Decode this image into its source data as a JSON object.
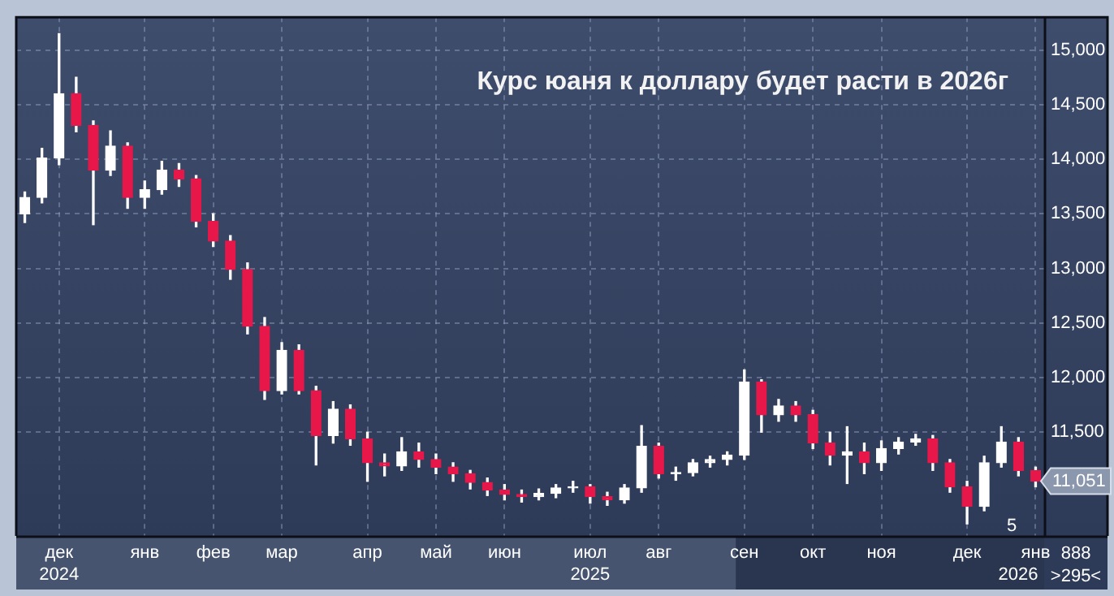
{
  "chart_data": {
    "type": "candlestick",
    "title": "Курс юаня к доллару будет расти в 2026г",
    "categories": [
      null,
      null,
      "дек",
      null,
      null,
      null,
      null,
      "янв",
      null,
      null,
      null,
      "фев",
      null,
      null,
      null,
      "мар",
      null,
      null,
      null,
      null,
      "апр",
      null,
      null,
      null,
      "май",
      null,
      null,
      null,
      "июн",
      null,
      null,
      null,
      null,
      "июл",
      null,
      null,
      null,
      "авг",
      null,
      null,
      null,
      null,
      "сен",
      null,
      null,
      null,
      "окт",
      null,
      null,
      null,
      "ноя",
      null,
      null,
      null,
      null,
      "дек",
      null,
      null,
      null,
      "янв"
    ],
    "ohlc": [
      [
        13500,
        13700,
        13420,
        13650
      ],
      [
        13650,
        14100,
        13600,
        14010
      ],
      [
        14010,
        15150,
        13950,
        14600
      ],
      [
        14600,
        14750,
        14250,
        14310
      ],
      [
        14310,
        14350,
        13400,
        13900
      ],
      [
        13900,
        14260,
        13850,
        14120
      ],
      [
        14120,
        14150,
        13550,
        13650
      ],
      [
        13650,
        13800,
        13550,
        13720
      ],
      [
        13720,
        13980,
        13680,
        13900
      ],
      [
        13900,
        13960,
        13750,
        13820
      ],
      [
        13820,
        13850,
        13380,
        13430
      ],
      [
        13430,
        13500,
        13200,
        13250
      ],
      [
        13250,
        13300,
        12900,
        12990
      ],
      [
        12990,
        13050,
        12400,
        12470
      ],
      [
        12470,
        12550,
        11800,
        11880
      ],
      [
        11880,
        12320,
        11850,
        12250
      ],
      [
        12250,
        12300,
        11850,
        11880
      ],
      [
        11880,
        11920,
        11200,
        11470
      ],
      [
        11470,
        11780,
        11400,
        11710
      ],
      [
        11710,
        11750,
        11380,
        11440
      ],
      [
        11440,
        11500,
        11050,
        11220
      ],
      [
        11220,
        11300,
        11100,
        11190
      ],
      [
        11190,
        11450,
        11150,
        11320
      ],
      [
        11320,
        11400,
        11180,
        11250
      ],
      [
        11250,
        11300,
        11120,
        11180
      ],
      [
        11180,
        11220,
        11050,
        11120
      ],
      [
        11120,
        11150,
        10980,
        11040
      ],
      [
        11040,
        11080,
        10920,
        10970
      ],
      [
        10970,
        11020,
        10880,
        10930
      ],
      [
        10930,
        10970,
        10860,
        10910
      ],
      [
        10910,
        10980,
        10880,
        10940
      ],
      [
        10940,
        11020,
        10900,
        10990
      ],
      [
        10990,
        11050,
        10950,
        11000
      ],
      [
        11000,
        11020,
        10850,
        10910
      ],
      [
        10910,
        10950,
        10830,
        10880
      ],
      [
        10880,
        11020,
        10850,
        10990
      ],
      [
        10990,
        11560,
        10950,
        11370
      ],
      [
        11370,
        11400,
        11080,
        11120
      ],
      [
        11120,
        11180,
        11060,
        11130
      ],
      [
        11130,
        11250,
        11100,
        11220
      ],
      [
        11220,
        11280,
        11180,
        11250
      ],
      [
        11250,
        11320,
        11200,
        11290
      ],
      [
        11290,
        12070,
        11250,
        11960
      ],
      [
        11960,
        11980,
        11500,
        11660
      ],
      [
        11660,
        11800,
        11600,
        11740
      ],
      [
        11740,
        11780,
        11600,
        11660
      ],
      [
        11660,
        11700,
        11350,
        11400
      ],
      [
        11400,
        11500,
        11200,
        11290
      ],
      [
        11290,
        11550,
        11030,
        11320
      ],
      [
        11320,
        11400,
        11120,
        11220
      ],
      [
        11220,
        11420,
        11150,
        11350
      ],
      [
        11350,
        11450,
        11300,
        11410
      ],
      [
        11410,
        11480,
        11380,
        11440
      ],
      [
        11440,
        11470,
        11150,
        11220
      ],
      [
        11220,
        11250,
        10950,
        11000
      ],
      [
        11000,
        11050,
        10660,
        10820
      ],
      [
        10820,
        11280,
        10780,
        11220
      ],
      [
        11220,
        11550,
        11180,
        11410
      ],
      [
        11410,
        11450,
        11100,
        11150
      ],
      [
        11150,
        11180,
        11000,
        11051
      ]
    ],
    "colors": [
      "#ffffff",
      "#ffffff",
      "#ffffff",
      "#e8174a",
      "#e8174a",
      "#ffffff",
      "#e8174a",
      "#ffffff",
      "#ffffff",
      "#e8174a",
      "#e8174a",
      "#e8174a",
      "#e8174a",
      "#e8174a",
      "#e8174a",
      "#ffffff",
      "#e8174a",
      "#e8174a",
      "#ffffff",
      "#e8174a",
      "#e8174a",
      "#e8174a",
      "#ffffff",
      "#e8174a",
      "#e8174a",
      "#e8174a",
      "#e8174a",
      "#e8174a",
      "#e8174a",
      "#e8174a",
      "#ffffff",
      "#ffffff",
      "#ffffff",
      "#e8174a",
      "#e8174a",
      "#ffffff",
      "#ffffff",
      "#e8174a",
      "#ffffff",
      "#ffffff",
      "#ffffff",
      "#ffffff",
      "#ffffff",
      "#e8174a",
      "#ffffff",
      "#e8174a",
      "#e8174a",
      "#e8174a",
      "#ffffff",
      "#e8174a",
      "#ffffff",
      "#ffffff",
      "#ffffff",
      "#e8174a",
      "#e8174a",
      "#e8174a",
      "#ffffff",
      "#ffffff",
      "#e8174a",
      "#e8174a"
    ],
    "ylim": [
      10550,
      15300
    ],
    "yticks": [
      {
        "value": 11500,
        "label": "11,500"
      },
      {
        "value": 12000,
        "label": "12,000"
      },
      {
        "value": 12500,
        "label": "12,500"
      },
      {
        "value": 13000,
        "label": "13,000"
      },
      {
        "value": 13500,
        "label": "13,500"
      },
      {
        "value": 14000,
        "label": "14,000"
      },
      {
        "value": 14500,
        "label": "14,500"
      },
      {
        "value": 15000,
        "label": "15,000"
      }
    ],
    "annotations": [
      {
        "text": "11,051",
        "y": 11051
      },
      "2024",
      "2025",
      "2026",
      "5",
      "888",
      ">295<"
    ],
    "grid": true,
    "legend": false
  }
}
